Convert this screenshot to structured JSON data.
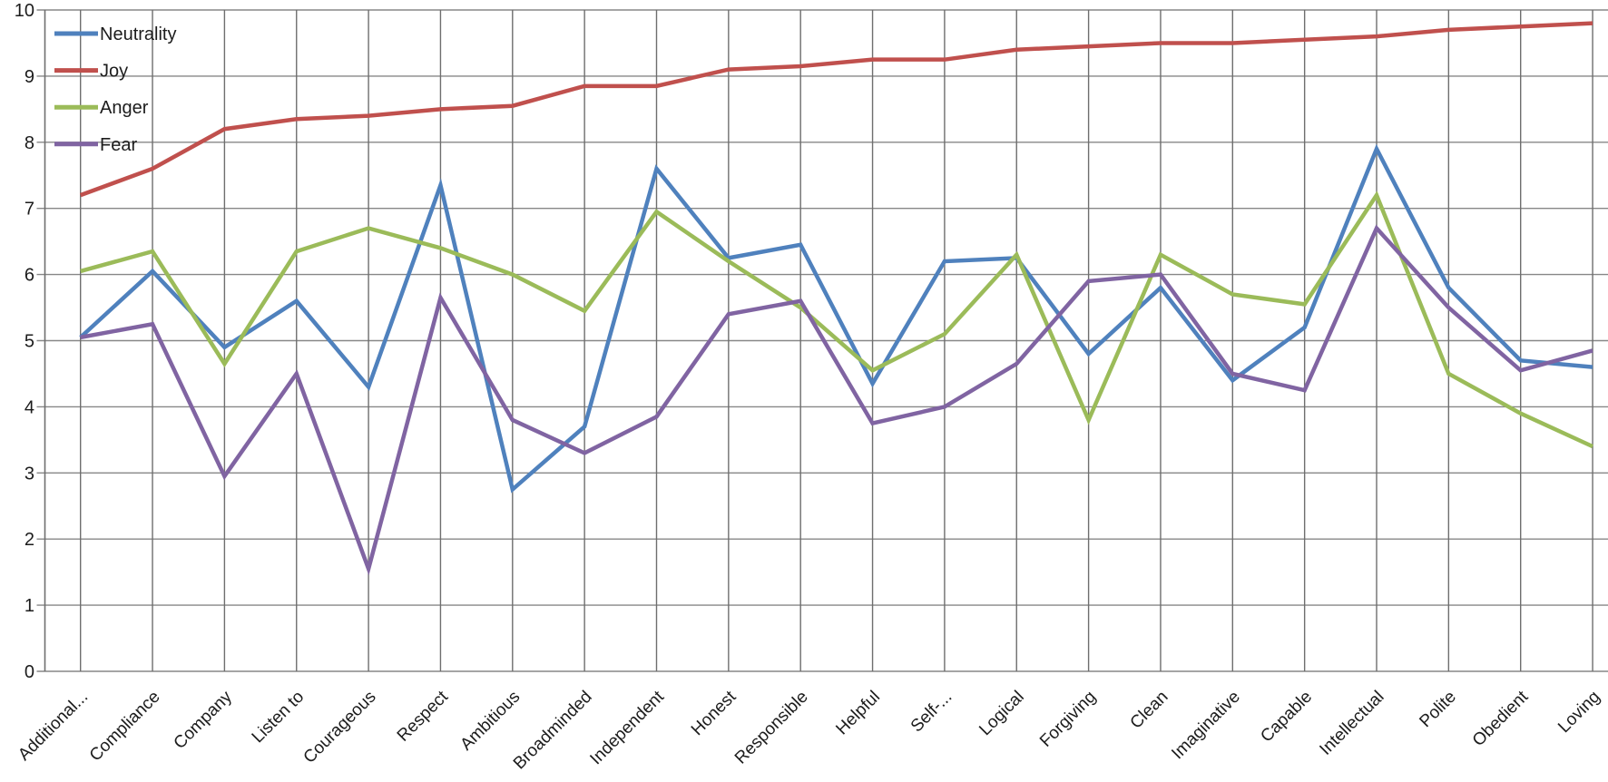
{
  "chart_data": {
    "type": "line",
    "title": "",
    "xlabel": "",
    "ylabel": "",
    "ylim": [
      0,
      10
    ],
    "ytick_step": 1,
    "y_tick_labels": [
      "0",
      "1",
      "2",
      "3",
      "4",
      "5",
      "6",
      "7",
      "8",
      "9",
      "10"
    ],
    "grid": "both",
    "legend_position": "top-left-inside",
    "x_label_rotation_deg": 45,
    "categories": [
      "Additional...",
      "Compliance",
      "Company",
      "Listen to",
      "Courageous",
      "Respect",
      "Ambitious",
      "Broadminded",
      "Independent",
      "Honest",
      "Responsible",
      "Helpful",
      "Self-...",
      "Logical",
      "Forgiving",
      "Clean",
      "Imaginative",
      "Capable",
      "Intellectual",
      "Polite",
      "Obedient",
      "Loving"
    ],
    "series": [
      {
        "name": "Neutrality",
        "color": "#4F81BD",
        "values": [
          5.05,
          6.05,
          4.9,
          5.6,
          4.3,
          7.35,
          2.75,
          3.7,
          7.6,
          6.25,
          6.45,
          4.35,
          6.2,
          6.25,
          4.8,
          5.8,
          4.4,
          5.2,
          7.9,
          5.8,
          4.7,
          4.6
        ]
      },
      {
        "name": "Joy",
        "color": "#C0504D",
        "values": [
          7.2,
          7.6,
          8.2,
          8.35,
          8.4,
          8.5,
          8.55,
          8.85,
          8.85,
          9.1,
          9.15,
          9.25,
          9.25,
          9.4,
          9.45,
          9.5,
          9.5,
          9.55,
          9.6,
          9.7,
          9.75,
          9.8
        ]
      },
      {
        "name": "Anger",
        "color": "#9BBB59",
        "values": [
          6.05,
          6.35,
          4.65,
          6.35,
          6.7,
          6.4,
          6.0,
          5.45,
          6.95,
          6.2,
          5.5,
          4.55,
          5.1,
          6.3,
          3.8,
          6.3,
          5.7,
          5.55,
          7.2,
          4.5,
          3.9,
          3.4
        ]
      },
      {
        "name": "Fear",
        "color": "#8064A2",
        "values": [
          5.05,
          5.25,
          2.95,
          4.5,
          1.55,
          5.65,
          3.8,
          3.3,
          3.85,
          5.4,
          5.6,
          3.75,
          4.0,
          4.65,
          5.9,
          6.0,
          4.5,
          4.25,
          6.7,
          5.5,
          4.55,
          4.85
        ]
      }
    ]
  },
  "colors": {
    "background": "#ffffff",
    "gridline": "#878787",
    "axis_line": "#6e6e6e",
    "axis_text": "#1c1c1c",
    "legend_text": "#1c1c1c"
  }
}
